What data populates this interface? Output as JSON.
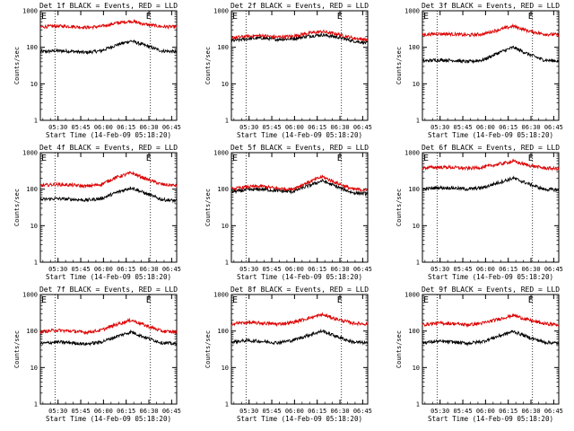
{
  "figure": {
    "ylabel": "Counts/sec",
    "xlabel": "Start Time (14-Feb-09 05:18:20)",
    "time_ticks": [
      "05:30",
      "05:45",
      "06:00",
      "06:15",
      "06:30",
      "06:45"
    ],
    "ytick_labels": [
      "1",
      "10",
      "100",
      "1000"
    ],
    "marker_label": "E",
    "series_colors": {
      "events": "#000000",
      "lld": "#dd0000"
    }
  },
  "panels": [
    {
      "title": "Det 1f BLACK = Events, RED = LLD"
    },
    {
      "title": "Det 2f BLACK = Events, RED = LLD"
    },
    {
      "title": "Det 3f BLACK = Events, RED = LLD"
    },
    {
      "title": "Det 4f BLACK = Events, RED = LLD"
    },
    {
      "title": "Det 5f BLACK = Events, RED = LLD"
    },
    {
      "title": "Det 6f BLACK = Events, RED = LLD"
    },
    {
      "title": "Det 7f BLACK = Events, RED = LLD"
    },
    {
      "title": "Det 8f BLACK = Events, RED = LLD"
    },
    {
      "title": "Det 9f BLACK = Events, RED = LLD"
    }
  ],
  "chart_data": [
    {
      "type": "line",
      "title": "Det 1f BLACK = Events, RED = LLD",
      "xlabel": "Start Time (14-Feb-09 05:18:20)",
      "ylabel": "Counts/sec",
      "yscale": "log",
      "ylim": [
        1,
        1000
      ],
      "x_minutes": [
        0,
        10,
        20,
        30,
        40,
        50,
        60,
        70,
        80,
        90
      ],
      "marker_times": [
        "05:28",
        "06:31"
      ],
      "series": [
        {
          "color": "#000000",
          "values": [
            75,
            80,
            78,
            72,
            80,
            115,
            150,
            110,
            80,
            75
          ]
        },
        {
          "color": "#dd0000",
          "values": [
            360,
            380,
            375,
            350,
            370,
            460,
            520,
            420,
            370,
            360
          ]
        }
      ]
    },
    {
      "type": "line",
      "title": "Det 2f BLACK = Events, RED = LLD",
      "xlabel": "Start Time (14-Feb-09 05:18:20)",
      "ylabel": "Counts/sec",
      "yscale": "log",
      "ylim": [
        1,
        1000
      ],
      "x_minutes": [
        0,
        10,
        20,
        30,
        40,
        50,
        60,
        70,
        80,
        90
      ],
      "marker_times": [
        "05:28",
        "06:31"
      ],
      "series": [
        {
          "color": "#000000",
          "values": [
            150,
            170,
            180,
            165,
            170,
            200,
            220,
            190,
            150,
            130
          ]
        },
        {
          "color": "#dd0000",
          "values": [
            180,
            200,
            210,
            190,
            200,
            240,
            270,
            230,
            180,
            160
          ]
        }
      ]
    },
    {
      "type": "line",
      "title": "Det 3f BLACK = Events, RED = LLD",
      "xlabel": "Start Time (14-Feb-09 05:18:20)",
      "ylabel": "Counts/sec",
      "yscale": "log",
      "ylim": [
        1,
        1000
      ],
      "x_minutes": [
        0,
        10,
        20,
        30,
        40,
        50,
        60,
        70,
        80,
        90
      ],
      "marker_times": [
        "05:28",
        "06:31"
      ],
      "series": [
        {
          "color": "#000000",
          "values": [
            42,
            45,
            44,
            40,
            45,
            70,
            100,
            65,
            45,
            42
          ]
        },
        {
          "color": "#dd0000",
          "values": [
            220,
            235,
            230,
            215,
            230,
            300,
            380,
            280,
            230,
            220
          ]
        }
      ]
    },
    {
      "type": "line",
      "title": "Det 4f BLACK = Events, RED = LLD",
      "xlabel": "Start Time (14-Feb-09 05:18:20)",
      "ylabel": "Counts/sec",
      "yscale": "log",
      "ylim": [
        1,
        1000
      ],
      "x_minutes": [
        0,
        10,
        20,
        30,
        40,
        50,
        60,
        70,
        80,
        90
      ],
      "marker_times": [
        "05:28",
        "06:31"
      ],
      "series": [
        {
          "color": "#000000",
          "values": [
            52,
            55,
            53,
            50,
            55,
            80,
            110,
            75,
            52,
            48
          ]
        },
        {
          "color": "#dd0000",
          "values": [
            125,
            135,
            130,
            120,
            135,
            210,
            280,
            190,
            135,
            125
          ]
        }
      ]
    },
    {
      "type": "line",
      "title": "Det 5f BLACK = Events, RED = LLD",
      "xlabel": "Start Time (14-Feb-09 05:18:20)",
      "ylabel": "Counts/sec",
      "yscale": "log",
      "ylim": [
        1,
        1000
      ],
      "x_minutes": [
        0,
        10,
        20,
        30,
        40,
        50,
        60,
        70,
        80,
        90
      ],
      "marker_times": [
        "05:28",
        "06:31"
      ],
      "series": [
        {
          "color": "#000000",
          "values": [
            85,
            95,
            100,
            90,
            85,
            120,
            170,
            115,
            80,
            75
          ]
        },
        {
          "color": "#dd0000",
          "values": [
            100,
            115,
            120,
            105,
            100,
            150,
            220,
            145,
            100,
            95
          ]
        }
      ]
    },
    {
      "type": "line",
      "title": "Det 6f BLACK = Events, RED = LLD",
      "xlabel": "Start Time (14-Feb-09 05:18:20)",
      "ylabel": "Counts/sec",
      "yscale": "log",
      "ylim": [
        1,
        1000
      ],
      "x_minutes": [
        0,
        10,
        20,
        30,
        40,
        50,
        60,
        70,
        80,
        90
      ],
      "marker_times": [
        "05:28",
        "06:31"
      ],
      "series": [
        {
          "color": "#000000",
          "values": [
            100,
            110,
            108,
            100,
            110,
            150,
            200,
            140,
            100,
            95
          ]
        },
        {
          "color": "#dd0000",
          "values": [
            380,
            400,
            395,
            370,
            400,
            480,
            580,
            450,
            380,
            360
          ]
        }
      ]
    },
    {
      "type": "line",
      "title": "Det 7f BLACK = Events, RED = LLD",
      "xlabel": "Start Time (14-Feb-09 05:18:20)",
      "ylabel": "Counts/sec",
      "yscale": "log",
      "ylim": [
        1,
        1000
      ],
      "x_minutes": [
        0,
        10,
        20,
        30,
        40,
        50,
        60,
        70,
        80,
        90
      ],
      "marker_times": [
        "05:28",
        "06:31"
      ],
      "series": [
        {
          "color": "#000000",
          "values": [
            45,
            50,
            48,
            44,
            50,
            70,
            95,
            65,
            48,
            44
          ]
        },
        {
          "color": "#dd0000",
          "values": [
            95,
            105,
            100,
            92,
            105,
            150,
            200,
            140,
            100,
            92
          ]
        }
      ]
    },
    {
      "type": "line",
      "title": "Det 8f BLACK = Events, RED = LLD",
      "xlabel": "Start Time (14-Feb-09 05:18:20)",
      "ylabel": "Counts/sec",
      "yscale": "log",
      "ylim": [
        1,
        1000
      ],
      "x_minutes": [
        0,
        10,
        20,
        30,
        40,
        50,
        60,
        70,
        80,
        90
      ],
      "marker_times": [
        "05:28",
        "06:31"
      ],
      "series": [
        {
          "color": "#000000",
          "values": [
            50,
            55,
            52,
            48,
            55,
            75,
            100,
            70,
            50,
            47
          ]
        },
        {
          "color": "#dd0000",
          "values": [
            160,
            170,
            165,
            155,
            170,
            220,
            280,
            210,
            165,
            155
          ]
        }
      ]
    },
    {
      "type": "line",
      "title": "Det 9f BLACK = Events, RED = LLD",
      "xlabel": "Start Time (14-Feb-09 05:18:20)",
      "ylabel": "Counts/sec",
      "yscale": "log",
      "ylim": [
        1,
        1000
      ],
      "x_minutes": [
        0,
        10,
        20,
        30,
        40,
        50,
        60,
        70,
        80,
        90
      ],
      "marker_times": [
        "05:28",
        "06:31"
      ],
      "series": [
        {
          "color": "#000000",
          "values": [
            48,
            52,
            50,
            46,
            52,
            72,
            98,
            68,
            50,
            46
          ]
        },
        {
          "color": "#dd0000",
          "values": [
            150,
            165,
            160,
            148,
            165,
            210,
            270,
            200,
            160,
            148
          ]
        }
      ]
    }
  ]
}
